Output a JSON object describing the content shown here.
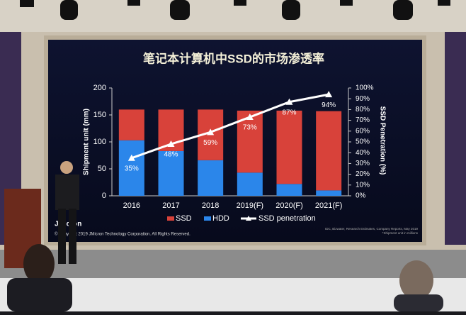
{
  "chart_data": {
    "type": "bar",
    "title": "笔记本计算机中SSD的市场渗透率",
    "categories": [
      "2016",
      "2017",
      "2018",
      "2019(F)",
      "2020(F)",
      "2021(F)"
    ],
    "series": [
      {
        "name": "SSD",
        "color": "#d8423a",
        "values": [
          57,
          77,
          94,
          115,
          136,
          147
        ]
      },
      {
        "name": "HDD",
        "color": "#2b86ea",
        "values": [
          103,
          83,
          66,
          43,
          22,
          10
        ]
      },
      {
        "name": "SSD penetration",
        "type": "line",
        "axis": "y2",
        "color": "#ffffff",
        "values": [
          35,
          48,
          59,
          73,
          87,
          94
        ],
        "value_labels": [
          "35%",
          "48%",
          "59%",
          "73%",
          "87%",
          "94%"
        ]
      }
    ],
    "stacked": true,
    "y_label": "Shipment unit (mm)",
    "y2_label": "SSD Penetration (%)",
    "ylim": [
      0,
      200
    ],
    "yticks": [
      0,
      50,
      100,
      150,
      200
    ],
    "y2lim": [
      0,
      100
    ],
    "y2ticks": [
      {
        "value": 0,
        "label": "0%"
      },
      {
        "value": 10,
        "label": "10%"
      },
      {
        "value": 20,
        "label": "20%"
      },
      {
        "value": 30,
        "label": "30%"
      },
      {
        "value": 40,
        "label": "40%"
      },
      {
        "value": 50,
        "label": "50%"
      },
      {
        "value": 60,
        "label": "60%"
      },
      {
        "value": 70,
        "label": "70%"
      },
      {
        "value": 80,
        "label": "80%"
      },
      {
        "value": 90,
        "label": "90%"
      },
      {
        "value": 100,
        "label": "100%"
      }
    ],
    "legend": "bottom"
  },
  "slide": {
    "logo": "JMicron",
    "copyright": "© Copyright 2019 JMicron Technology Corporation. All Rights Reserved.",
    "source": "IDC, Bizwater, Research Estimates, Company Reports, May 2019",
    "note": "*Shipment unit in millions"
  }
}
